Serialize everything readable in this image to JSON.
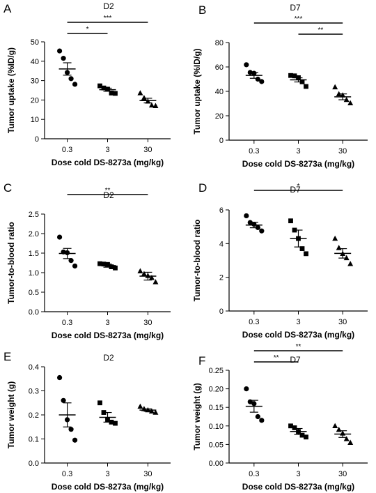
{
  "chart_data": [
    {
      "panel_label": "A",
      "type": "scatter",
      "title": "D2",
      "ylabel": "Tumor uptake (%ID/g)",
      "xlabel": "Dose cold DS-8273a (mg/kg)",
      "categories": [
        "0.3",
        "3",
        "30"
      ],
      "ylim": [
        0,
        50
      ],
      "yticks": [
        0,
        10,
        20,
        30,
        40,
        50
      ],
      "marker_shapes": [
        "circle",
        "square",
        "triangle"
      ],
      "points": [
        [
          45.3,
          41.5,
          34.2,
          31.0,
          28.1
        ],
        [
          27.3,
          26.2,
          25.6,
          23.6,
          23.4
        ],
        [
          23.6,
          21.1,
          19.3,
          17.3,
          17.0
        ]
      ],
      "means": [
        36.0,
        25.3,
        19.7
      ],
      "sem": [
        3.2,
        0.8,
        1.2
      ],
      "significance": [
        {
          "from": "0.3",
          "to": "30",
          "label": "***"
        },
        {
          "from": "0.3",
          "to": "3",
          "label": "*"
        }
      ]
    },
    {
      "panel_label": "B",
      "type": "scatter",
      "title": "D7",
      "ylabel": "Tumor uptake (%ID/g)",
      "xlabel": "Dose cold DS-8273a (mg/kg)",
      "categories": [
        "0.3",
        "3",
        "30"
      ],
      "ylim": [
        0,
        80
      ],
      "yticks": [
        0,
        20,
        40,
        60,
        80
      ],
      "marker_shapes": [
        "circle",
        "square",
        "triangle"
      ],
      "points": [
        [
          61.8,
          55.5,
          54.8,
          50.0,
          48.0
        ],
        [
          53.0,
          52.7,
          51.2,
          47.8,
          44.0
        ],
        [
          43.5,
          37.8,
          36.9,
          33.1,
          30.4
        ]
      ],
      "means": [
        53.1,
        49.4,
        35.5
      ],
      "sem": [
        2.4,
        1.7,
        2.4
      ],
      "significance": [
        {
          "from": "0.3",
          "to": "30",
          "label": "***"
        },
        {
          "from": "3",
          "to": "30",
          "label": "**"
        }
      ]
    },
    {
      "panel_label": "C",
      "type": "scatter",
      "title": "D2",
      "ylabel": "Tumor-to-blood ratio",
      "xlabel": "Dose cold DS-8273a (mg/kg)",
      "categories": [
        "0.3",
        "3",
        "30"
      ],
      "ylim": [
        0,
        2.5
      ],
      "yticks": [
        0.0,
        0.5,
        1.0,
        1.5,
        2.0,
        2.5
      ],
      "marker_shapes": [
        "circle",
        "square",
        "triangle"
      ],
      "points": [
        [
          1.91,
          1.53,
          1.51,
          1.31,
          1.17
        ],
        [
          1.23,
          1.22,
          1.21,
          1.15,
          1.12
        ],
        [
          1.04,
          0.97,
          0.92,
          0.87,
          0.76
        ]
      ],
      "means": [
        1.49,
        1.18,
        0.91
      ],
      "sem": [
        0.13,
        0.04,
        0.1
      ],
      "significance": [
        {
          "from": "0.3",
          "to": "30",
          "label": "**"
        }
      ]
    },
    {
      "panel_label": "D",
      "type": "scatter",
      "title": "D7",
      "ylabel": "Tumor-to-blood ratio",
      "xlabel": "Dose cold DS-8273a (mg/kg)",
      "categories": [
        "0.3",
        "3",
        "30"
      ],
      "ylim": [
        0,
        6
      ],
      "yticks": [
        0,
        2,
        4,
        6
      ],
      "marker_shapes": [
        "circle",
        "square",
        "triangle"
      ],
      "points": [
        [
          5.65,
          5.25,
          5.15,
          4.95,
          4.75
        ],
        [
          5.35,
          4.8,
          4.3,
          3.7,
          3.4
        ],
        [
          4.3,
          3.75,
          3.4,
          3.15,
          2.8
        ]
      ],
      "means": [
        5.1,
        4.3,
        3.42
      ],
      "sem": [
        0.16,
        0.5,
        0.28
      ],
      "significance": [
        {
          "from": "0.3",
          "to": "30",
          "label": "*"
        }
      ]
    },
    {
      "panel_label": "E",
      "type": "scatter",
      "title": "D2",
      "ylabel": "Tumor weight (g)",
      "xlabel": "Dose cold DS-8273a (mg/kg)",
      "categories": [
        "0.3",
        "3",
        "30"
      ],
      "ylim": [
        0,
        0.4
      ],
      "yticks": [
        0.0,
        0.1,
        0.2,
        0.3,
        0.4
      ],
      "marker_shapes": [
        "circle",
        "square",
        "triangle"
      ],
      "points": [
        [
          0.355,
          0.26,
          0.18,
          0.14,
          0.095
        ],
        [
          0.25,
          0.21,
          0.18,
          0.17,
          0.165
        ],
        [
          0.235,
          0.225,
          0.22,
          0.215,
          0.21
        ]
      ],
      "means": [
        0.2,
        0.19,
        0.22
      ],
      "sem": [
        0.05,
        0.02,
        0.005
      ],
      "significance": []
    },
    {
      "panel_label": "F",
      "type": "scatter",
      "title": "D7",
      "ylabel": "Tumor weight (g)",
      "xlabel": "Dose cold DS-8273a (mg/kg)",
      "categories": [
        "0.3",
        "3",
        "30"
      ],
      "ylim": [
        0,
        0.25
      ],
      "yticks": [
        0.0,
        0.05,
        0.1,
        0.15,
        0.2,
        0.25
      ],
      "marker_shapes": [
        "circle",
        "square",
        "triangle"
      ],
      "points": [
        [
          0.2,
          0.165,
          0.16,
          0.125,
          0.115
        ],
        [
          0.1,
          0.095,
          0.085,
          0.075,
          0.07
        ],
        [
          0.1,
          0.09,
          0.08,
          0.065,
          0.055
        ]
      ],
      "means": [
        0.153,
        0.085,
        0.078
      ],
      "sem": [
        0.016,
        0.008,
        0.009
      ],
      "significance": [
        {
          "from": "0.3",
          "to": "30",
          "label": "**"
        },
        {
          "from": "0.3",
          "to": "3",
          "label": "**"
        }
      ]
    }
  ]
}
